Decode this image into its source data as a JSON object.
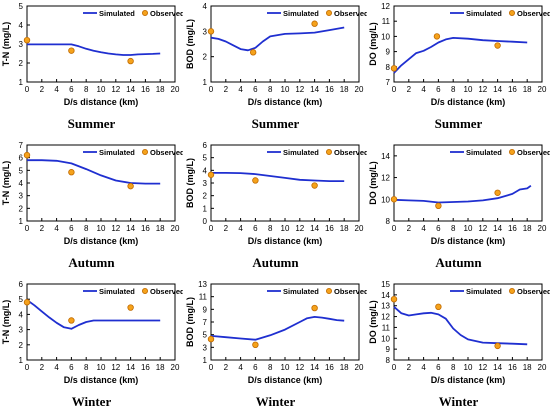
{
  "figure": {
    "line_color": "#1f2fd0",
    "marker_color": "#f5a21b",
    "marker_edge": "#c06a00"
  },
  "chart_data": [
    {
      "type": "line",
      "season": "Summer",
      "ylabel": "T-N (mg/L)",
      "xlabel": "D/s distance (km)",
      "xlim": [
        0,
        20
      ],
      "ylim": [
        1,
        5
      ],
      "xticks": [
        0,
        2,
        4,
        6,
        8,
        10,
        12,
        14,
        16,
        18,
        20
      ],
      "yticks": [
        1,
        2,
        3,
        4,
        5
      ],
      "legend": [
        "Simulated",
        "Observed"
      ],
      "series": [
        {
          "name": "Simulated",
          "style": "line",
          "x": [
            0,
            2,
            4,
            6,
            7,
            8,
            9,
            10,
            11,
            12,
            13,
            14,
            15,
            16,
            17,
            18
          ],
          "y": [
            2.98,
            2.98,
            2.98,
            2.98,
            2.88,
            2.75,
            2.65,
            2.57,
            2.5,
            2.45,
            2.42,
            2.42,
            2.45,
            2.47,
            2.48,
            2.5
          ]
        },
        {
          "name": "Observed",
          "style": "marker",
          "x": [
            0,
            6,
            14
          ],
          "y": [
            3.2,
            2.65,
            2.1
          ]
        }
      ]
    },
    {
      "type": "line",
      "season": "Summer",
      "ylabel": "BOD (mg/L)",
      "xlabel": "D/s distance (km)",
      "xlim": [
        0,
        20
      ],
      "ylim": [
        1,
        4
      ],
      "xticks": [
        0,
        2,
        4,
        6,
        8,
        10,
        12,
        14,
        16,
        18,
        20
      ],
      "yticks": [
        1,
        2,
        3,
        4
      ],
      "legend": [
        "Simulated",
        "Observed"
      ],
      "series": [
        {
          "name": "Simulated",
          "style": "line",
          "x": [
            0,
            1,
            2,
            3,
            4,
            5,
            6,
            7,
            8,
            10,
            12,
            14,
            16,
            18
          ],
          "y": [
            2.75,
            2.7,
            2.6,
            2.45,
            2.3,
            2.25,
            2.35,
            2.6,
            2.8,
            2.9,
            2.92,
            2.95,
            3.05,
            3.15
          ]
        },
        {
          "name": "Observed",
          "style": "marker",
          "x": [
            0,
            5.7,
            14
          ],
          "y": [
            3.0,
            2.17,
            3.3
          ]
        }
      ]
    },
    {
      "type": "line",
      "season": "Summer",
      "ylabel": "DO (mg/L)",
      "xlabel": "D/s distance (km)",
      "xlim": [
        0,
        20
      ],
      "ylim": [
        7,
        12
      ],
      "xticks": [
        0,
        2,
        4,
        6,
        8,
        10,
        12,
        14,
        16,
        18,
        20
      ],
      "yticks": [
        7,
        8,
        9,
        10,
        11,
        12
      ],
      "legend": [
        "Simulated",
        "Observed"
      ],
      "series": [
        {
          "name": "Simulated",
          "style": "line",
          "x": [
            0,
            1,
            2,
            3,
            4,
            5,
            6,
            7,
            8,
            10,
            12,
            14,
            16,
            18
          ],
          "y": [
            7.6,
            8.1,
            8.5,
            8.9,
            9.05,
            9.3,
            9.6,
            9.8,
            9.9,
            9.85,
            9.75,
            9.7,
            9.65,
            9.6
          ]
        },
        {
          "name": "Observed",
          "style": "marker",
          "x": [
            0,
            5.8,
            14
          ],
          "y": [
            7.9,
            10.0,
            9.4
          ]
        }
      ]
    },
    {
      "type": "line",
      "season": "Autumn",
      "ylabel": "T-N (mg/L)",
      "xlabel": "D/s distance (km)",
      "xlim": [
        0,
        20
      ],
      "ylim": [
        1,
        7
      ],
      "xticks": [
        0,
        2,
        4,
        6,
        8,
        10,
        12,
        14,
        16,
        18,
        20
      ],
      "yticks": [
        1,
        2,
        3,
        4,
        5,
        6,
        7
      ],
      "legend": [
        "Simulated",
        "Observed"
      ],
      "series": [
        {
          "name": "Simulated",
          "style": "line",
          "x": [
            0,
            2,
            4,
            6,
            8,
            10,
            12,
            14,
            16,
            18
          ],
          "y": [
            5.8,
            5.8,
            5.75,
            5.55,
            5.1,
            4.6,
            4.2,
            4.0,
            3.95,
            3.95
          ]
        },
        {
          "name": "Observed",
          "style": "marker",
          "x": [
            0,
            6,
            14
          ],
          "y": [
            6.2,
            4.85,
            3.75
          ]
        }
      ]
    },
    {
      "type": "line",
      "season": "Autumn",
      "ylabel": "BOD (mg/L)",
      "xlabel": "D/s distance (km)",
      "xlim": [
        0,
        20
      ],
      "ylim": [
        0,
        6
      ],
      "xticks": [
        0,
        2,
        4,
        6,
        8,
        10,
        12,
        14,
        16,
        18,
        20
      ],
      "yticks": [
        0,
        1,
        2,
        3,
        4,
        5,
        6
      ],
      "legend": [
        "Simulated",
        "Observed"
      ],
      "series": [
        {
          "name": "Simulated",
          "style": "line",
          "x": [
            0,
            2,
            4,
            6,
            8,
            10,
            12,
            14,
            16,
            18
          ],
          "y": [
            3.8,
            3.8,
            3.78,
            3.7,
            3.55,
            3.4,
            3.25,
            3.2,
            3.15,
            3.15
          ]
        },
        {
          "name": "Observed",
          "style": "marker",
          "x": [
            0,
            6,
            14
          ],
          "y": [
            3.65,
            3.2,
            2.8
          ]
        }
      ]
    },
    {
      "type": "line",
      "season": "Autumn",
      "ylabel": "DO (mg/L)",
      "xlabel": "D/s distance (km)",
      "xlim": [
        0,
        20
      ],
      "ylim": [
        8,
        15
      ],
      "xticks": [
        0,
        2,
        4,
        6,
        8,
        10,
        12,
        14,
        16,
        18,
        20
      ],
      "yticks": [
        8,
        10,
        12,
        14
      ],
      "legend": [
        "Simulated",
        "Observed"
      ],
      "series": [
        {
          "name": "Simulated",
          "style": "line",
          "x": [
            0,
            2,
            4,
            6,
            8,
            10,
            12,
            14,
            16,
            17,
            18,
            18.5
          ],
          "y": [
            9.95,
            9.9,
            9.85,
            9.7,
            9.75,
            9.8,
            9.9,
            10.1,
            10.5,
            10.9,
            11.0,
            11.25
          ]
        },
        {
          "name": "Observed",
          "style": "marker",
          "x": [
            0,
            6,
            14
          ],
          "y": [
            10.0,
            9.4,
            10.6
          ]
        }
      ]
    },
    {
      "type": "line",
      "season": "Winter",
      "ylabel": "T-N (mg/L)",
      "xlabel": "D/s distance (km)",
      "xlim": [
        0,
        20
      ],
      "ylim": [
        1,
        6
      ],
      "xticks": [
        0,
        2,
        4,
        6,
        8,
        10,
        12,
        14,
        16,
        18,
        20
      ],
      "yticks": [
        1,
        2,
        3,
        4,
        5,
        6
      ],
      "legend": [
        "Simulated",
        "Observed"
      ],
      "series": [
        {
          "name": "Simulated",
          "style": "line",
          "x": [
            0,
            1,
            2,
            3,
            4,
            5,
            6,
            7,
            8,
            9,
            10,
            12,
            14,
            16,
            18
          ],
          "y": [
            4.95,
            4.6,
            4.2,
            3.8,
            3.45,
            3.15,
            3.05,
            3.3,
            3.5,
            3.6,
            3.6,
            3.6,
            3.6,
            3.6,
            3.6
          ]
        },
        {
          "name": "Observed",
          "style": "marker",
          "x": [
            0,
            6,
            14
          ],
          "y": [
            4.8,
            3.6,
            4.45
          ]
        }
      ]
    },
    {
      "type": "line",
      "season": "Winter",
      "ylabel": "BOD (mg/L)",
      "xlabel": "D/s distance (km)",
      "xlim": [
        0,
        20
      ],
      "ylim": [
        1,
        13
      ],
      "xticks": [
        0,
        2,
        4,
        6,
        8,
        10,
        12,
        14,
        16,
        18,
        20
      ],
      "yticks": [
        1,
        3,
        5,
        7,
        9,
        11,
        13
      ],
      "legend": [
        "Simulated",
        "Observed"
      ],
      "series": [
        {
          "name": "Simulated",
          "style": "line",
          "x": [
            0,
            2,
            4,
            6,
            8,
            10,
            12,
            13,
            14,
            15,
            16,
            17,
            18
          ],
          "y": [
            4.8,
            4.6,
            4.4,
            4.2,
            4.9,
            5.8,
            7.0,
            7.6,
            7.8,
            7.7,
            7.5,
            7.3,
            7.2
          ]
        },
        {
          "name": "Observed",
          "style": "marker",
          "x": [
            0,
            6,
            14
          ],
          "y": [
            4.3,
            3.4,
            9.2
          ]
        }
      ]
    },
    {
      "type": "line",
      "season": "Winter",
      "ylabel": "DO (mg/L)",
      "xlabel": "D/s distance (km)",
      "xlim": [
        0,
        20
      ],
      "ylim": [
        8,
        15
      ],
      "xticks": [
        0,
        2,
        4,
        6,
        8,
        10,
        12,
        14,
        16,
        18,
        20
      ],
      "yticks": [
        8,
        9,
        10,
        11,
        12,
        13,
        14,
        15
      ],
      "legend": [
        "Simulated",
        "Observed"
      ],
      "series": [
        {
          "name": "Simulated",
          "style": "line",
          "x": [
            0,
            1,
            2,
            3,
            4,
            5,
            6,
            7,
            8,
            9,
            10,
            12,
            14,
            16,
            18
          ],
          "y": [
            12.9,
            12.3,
            12.1,
            12.2,
            12.3,
            12.35,
            12.2,
            11.8,
            10.9,
            10.3,
            9.9,
            9.6,
            9.55,
            9.5,
            9.45
          ]
        },
        {
          "name": "Observed",
          "style": "marker",
          "x": [
            0,
            6,
            14
          ],
          "y": [
            13.6,
            12.9,
            9.3
          ]
        }
      ]
    }
  ]
}
